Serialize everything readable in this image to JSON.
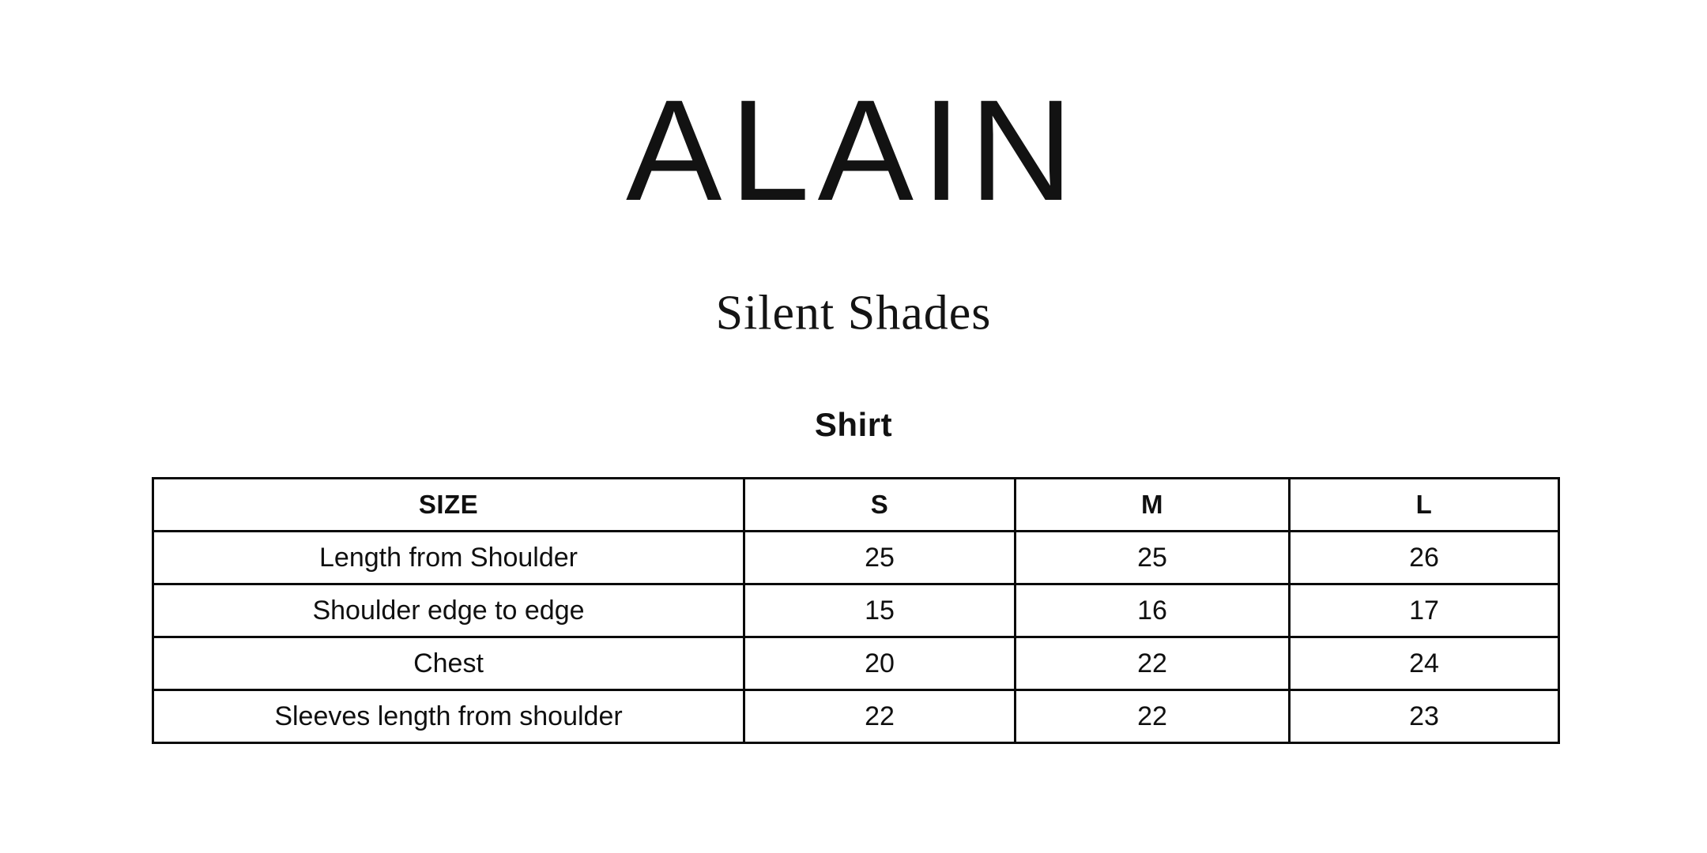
{
  "colors": {
    "background": "#ffffff",
    "text": "#111111",
    "table_border": "#0a0a0a"
  },
  "brand": {
    "logo_text": "ALAIN"
  },
  "collection": {
    "title": "Silent Shades"
  },
  "product": {
    "title": "Shirt"
  },
  "size_chart": {
    "headers": [
      "SIZE",
      "S",
      "M",
      "L"
    ],
    "rows": [
      {
        "label": "Length from Shoulder",
        "values": [
          "25",
          "25",
          "26"
        ]
      },
      {
        "label": "Shoulder edge to edge",
        "values": [
          "15",
          "16",
          "17"
        ]
      },
      {
        "label": "Chest",
        "values": [
          "20",
          "22",
          "24"
        ]
      },
      {
        "label": "Sleeves length from shoulder",
        "values": [
          "22",
          "22",
          "23"
        ]
      }
    ]
  }
}
